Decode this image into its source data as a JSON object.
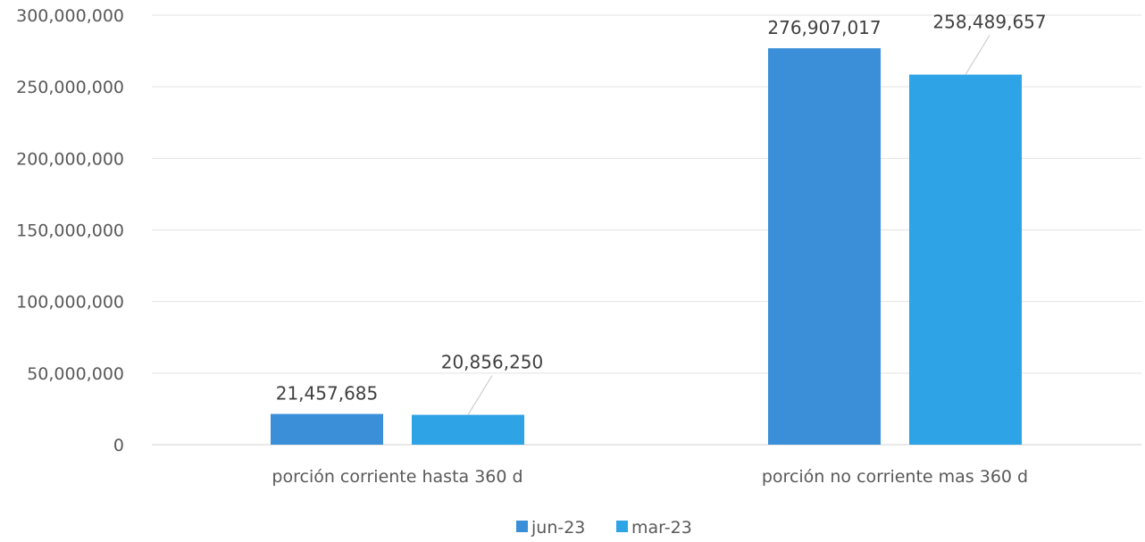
{
  "chart_data": {
    "type": "bar",
    "title": "",
    "xlabel": "",
    "ylabel": "",
    "categories": [
      "porción corriente hasta 360 d",
      "porción no corriente mas 360 d"
    ],
    "series": [
      {
        "name": "jun-23",
        "color": "#3a8fd8",
        "values": [
          21457685,
          276907017
        ],
        "labels": [
          "21,457,685",
          "276,907,017"
        ]
      },
      {
        "name": "mar-23",
        "color": "#2ea3e6",
        "values": [
          20856250,
          258489657
        ],
        "labels": [
          "20,856,250",
          "258,489,657"
        ]
      }
    ],
    "ylim": [
      0,
      300000000
    ],
    "yticks": [
      {
        "value": 0,
        "label": "0"
      },
      {
        "value": 50000000,
        "label": "50,000,000"
      },
      {
        "value": 100000000,
        "label": "100,000,000"
      },
      {
        "value": 150000000,
        "label": "150,000,000"
      },
      {
        "value": 200000000,
        "label": "200,000,000"
      },
      {
        "value": 250000000,
        "label": "250,000,000"
      },
      {
        "value": 300000000,
        "label": "300,000,000"
      }
    ],
    "grid": true,
    "legend_position": "bottom"
  }
}
